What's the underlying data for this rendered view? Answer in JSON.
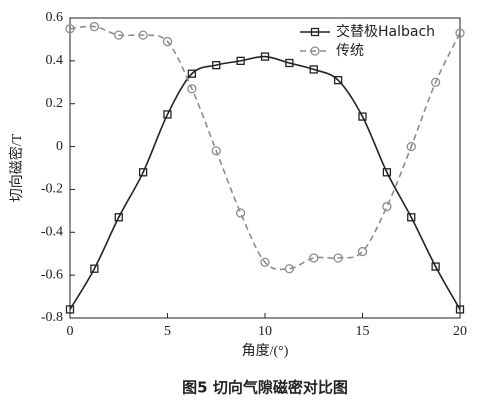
{
  "chart_data": {
    "type": "line",
    "caption": "图5  切向气隙磁密对比图",
    "xlabel": "角度/(°)",
    "ylabel": "切向磁密/T",
    "x": [
      0,
      1.25,
      2.5,
      3.75,
      5,
      6.25,
      7.5,
      8.75,
      10,
      11.25,
      12.5,
      13.75,
      15,
      16.25,
      17.5,
      18.75,
      20
    ],
    "series": [
      {
        "name": "交替极Halbach",
        "color": "#222222",
        "marker": "square",
        "dash": false,
        "values": [
          -0.76,
          -0.57,
          -0.33,
          -0.12,
          0.15,
          0.34,
          0.38,
          0.4,
          0.42,
          0.39,
          0.36,
          0.31,
          0.14,
          -0.12,
          -0.33,
          -0.56,
          -0.76
        ]
      },
      {
        "name": "传统",
        "color": "#8c8c8c",
        "marker": "circle",
        "dash": true,
        "values": [
          0.55,
          0.56,
          0.52,
          0.52,
          0.49,
          0.27,
          -0.02,
          -0.31,
          -0.54,
          -0.57,
          -0.52,
          -0.52,
          -0.49,
          -0.28,
          0.0,
          0.3,
          0.53
        ]
      }
    ],
    "xlim": [
      0,
      20
    ],
    "ylim": [
      -0.8,
      0.6
    ],
    "xticks": [
      0,
      5,
      10,
      15,
      20
    ],
    "yticks": [
      0.6,
      0.4,
      0.2,
      0,
      -0.2,
      -0.4,
      -0.6,
      -0.8
    ],
    "legend": "upper right"
  }
}
